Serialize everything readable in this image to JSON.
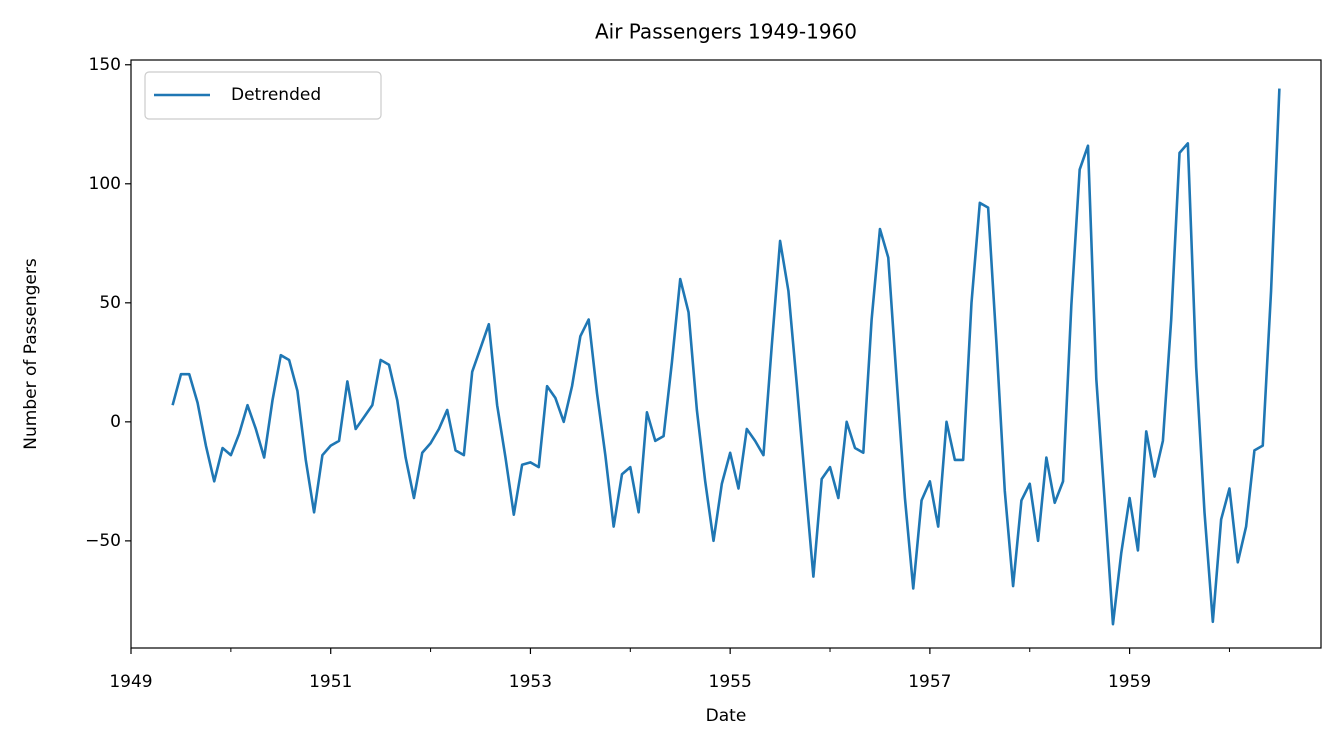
{
  "chart_data": {
    "type": "line",
    "title": "Air Passengers 1949-1960",
    "x_label": "Date",
    "y_label": "Number of Passengers",
    "x": [
      "1949-06",
      "1949-07",
      "1949-08",
      "1949-09",
      "1949-10",
      "1949-11",
      "1949-12",
      "1950-01",
      "1950-02",
      "1950-03",
      "1950-04",
      "1950-05",
      "1950-06",
      "1950-07",
      "1950-08",
      "1950-09",
      "1950-10",
      "1950-11",
      "1950-12",
      "1951-01",
      "1951-02",
      "1951-03",
      "1951-04",
      "1951-05",
      "1951-06",
      "1951-07",
      "1951-08",
      "1951-09",
      "1951-10",
      "1951-11",
      "1951-12",
      "1952-01",
      "1952-02",
      "1952-03",
      "1952-04",
      "1952-05",
      "1952-06",
      "1952-07",
      "1952-08",
      "1952-09",
      "1952-10",
      "1952-11",
      "1952-12",
      "1953-01",
      "1953-02",
      "1953-03",
      "1953-04",
      "1953-05",
      "1953-06",
      "1953-07",
      "1953-08",
      "1953-09",
      "1953-10",
      "1953-11",
      "1953-12",
      "1954-01",
      "1954-02",
      "1954-03",
      "1954-04",
      "1954-05",
      "1954-06",
      "1954-07",
      "1954-08",
      "1954-09",
      "1954-10",
      "1954-11",
      "1954-12",
      "1955-01",
      "1955-02",
      "1955-03",
      "1955-04",
      "1955-05",
      "1955-06",
      "1955-07",
      "1955-08",
      "1955-09",
      "1955-10",
      "1955-11",
      "1955-12",
      "1956-01",
      "1956-02",
      "1956-03",
      "1956-04",
      "1956-05",
      "1956-06",
      "1956-07",
      "1956-08",
      "1956-09",
      "1956-10",
      "1956-11",
      "1956-12",
      "1957-01",
      "1957-02",
      "1957-03",
      "1957-04",
      "1957-05",
      "1957-06",
      "1957-07",
      "1957-08",
      "1957-09",
      "1957-10",
      "1957-11",
      "1957-12",
      "1958-01",
      "1958-02",
      "1958-03",
      "1958-04",
      "1958-05",
      "1958-06",
      "1958-07",
      "1958-08",
      "1958-09",
      "1958-10",
      "1958-11",
      "1958-12",
      "1959-01",
      "1959-02",
      "1959-03",
      "1959-04",
      "1959-05",
      "1959-06",
      "1959-07",
      "1959-08",
      "1959-09",
      "1959-10",
      "1959-11",
      "1959-12",
      "1960-01",
      "1960-02",
      "1960-03",
      "1960-04",
      "1960-05",
      "1960-06",
      "1960-07"
    ],
    "series": [
      {
        "name": "Detrended",
        "color": "#1f77b4",
        "values": [
          7,
          20,
          20,
          8,
          -10,
          -25,
          -11,
          -14,
          -5,
          7,
          -3,
          -15,
          9,
          28,
          26,
          13,
          -16,
          -38,
          -14,
          -10,
          -8,
          17,
          -3,
          2,
          7,
          26,
          24,
          9,
          -15,
          -32,
          -13,
          -9,
          -3,
          5,
          -12,
          -14,
          21,
          31,
          41,
          7,
          -15,
          -39,
          -18,
          -17,
          -19,
          15,
          10,
          0,
          15,
          36,
          43,
          12,
          -14,
          -44,
          -22,
          -19,
          -38,
          4,
          -8,
          -6,
          25,
          60,
          46,
          5,
          -25,
          -50,
          -26,
          -13,
          -28,
          -3,
          -8,
          -14,
          32,
          76,
          55,
          16,
          -25,
          -65,
          -24,
          -19,
          -32,
          0,
          -11,
          -13,
          43,
          81,
          69,
          18,
          -32,
          -70,
          -33,
          -25,
          -44,
          0,
          -16,
          -16,
          50,
          92,
          90,
          33,
          -29,
          -69,
          -33,
          -26,
          -50,
          -15,
          -34,
          -25,
          49,
          106,
          116,
          18,
          -33,
          -85,
          -55,
          -32,
          -54,
          -4,
          -23,
          -8,
          43,
          113,
          117,
          23,
          -38,
          -84,
          -41,
          -28,
          -59,
          -44,
          -12,
          -10,
          55,
          140
        ]
      }
    ],
    "xlim": [
      "1949-01",
      "1960-12"
    ],
    "xticks": [
      {
        "value": "1949-01",
        "label": "1949"
      },
      {
        "value": "1951-01",
        "label": "1951"
      },
      {
        "value": "1953-01",
        "label": "1953"
      },
      {
        "value": "1955-01",
        "label": "1955"
      },
      {
        "value": "1957-01",
        "label": "1957"
      },
      {
        "value": "1959-01",
        "label": "1959"
      }
    ],
    "xminorticks": [
      "1950-01",
      "1952-01",
      "1954-01",
      "1956-01",
      "1958-01",
      "1960-01"
    ],
    "ylim": [
      -95,
      152
    ],
    "yticks": [
      {
        "value": -50,
        "label": "−50"
      },
      0,
      50,
      100,
      150
    ],
    "grid": false,
    "legend": "upper left"
  }
}
